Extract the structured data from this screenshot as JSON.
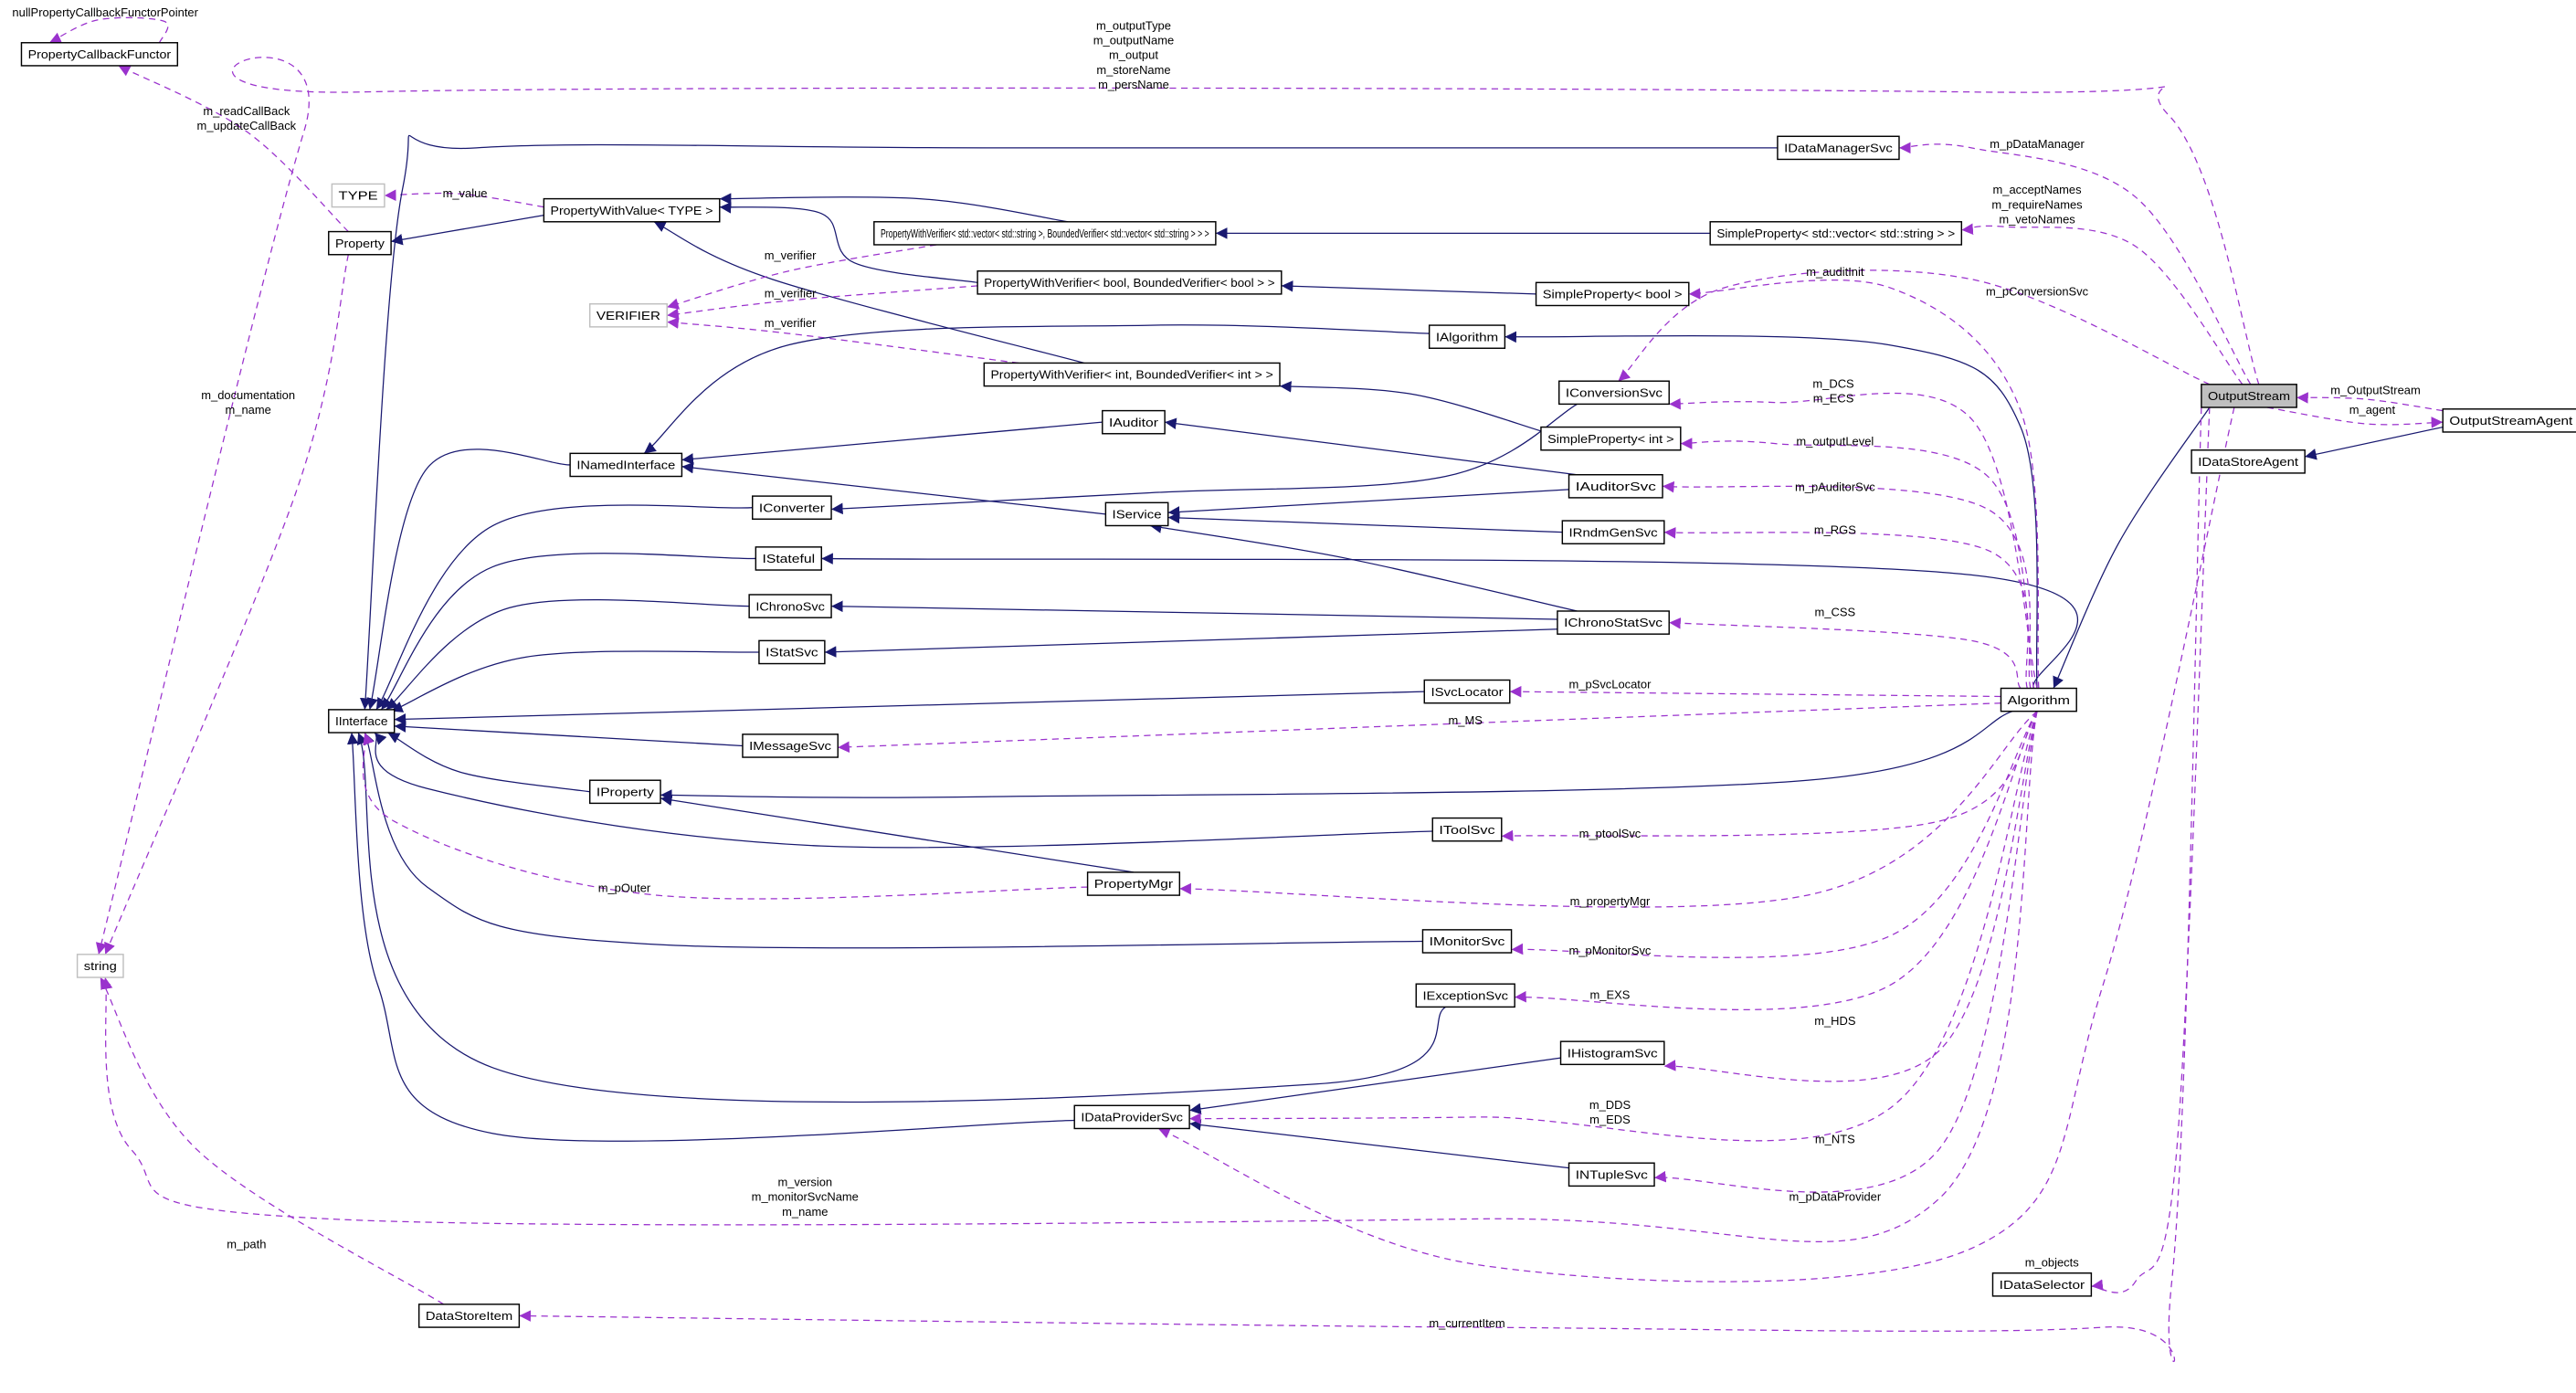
{
  "colors": {
    "inheritance": "#191970",
    "usage": "#9a32cd",
    "focus_fill": "#bfbfbf",
    "undocumented_border": "#bfbfbf"
  },
  "nodes": [
    {
      "id": "PropertyCallbackFunctor",
      "label": "PropertyCallbackFunctor",
      "style": "normal"
    },
    {
      "id": "TYPE",
      "label": "TYPE",
      "style": "gray"
    },
    {
      "id": "Property",
      "label": "Property",
      "style": "normal"
    },
    {
      "id": "PWV",
      "label": "PropertyWithValue< TYPE >",
      "style": "normal"
    },
    {
      "id": "VERIFIER",
      "label": "VERIFIER",
      "style": "gray"
    },
    {
      "id": "PWVvec",
      "label": "PropertyWithVerifier< std::vector< std::string >, BoundedVerifier< std::vector< std::string > > >",
      "style": "normal"
    },
    {
      "id": "IDataManagerSvc",
      "label": "IDataManagerSvc",
      "style": "normal"
    },
    {
      "id": "SPvec",
      "label": "SimpleProperty< std::vector< std::string > >",
      "style": "normal"
    },
    {
      "id": "PWVbool",
      "label": "PropertyWithVerifier< bool, BoundedVerifier< bool > >",
      "style": "normal"
    },
    {
      "id": "SPbool",
      "label": "SimpleProperty< bool >",
      "style": "normal"
    },
    {
      "id": "IAlgorithm",
      "label": "IAlgorithm",
      "style": "normal"
    },
    {
      "id": "PWVint",
      "label": "PropertyWithVerifier< int, BoundedVerifier< int > >",
      "style": "normal"
    },
    {
      "id": "IConversionSvc",
      "label": "IConversionSvc",
      "style": "normal"
    },
    {
      "id": "SPint",
      "label": "SimpleProperty< int >",
      "style": "normal"
    },
    {
      "id": "INamedInterface",
      "label": "INamedInterface",
      "style": "normal"
    },
    {
      "id": "IAuditor",
      "label": "IAuditor",
      "style": "normal"
    },
    {
      "id": "IConverter",
      "label": "IConverter",
      "style": "normal"
    },
    {
      "id": "IService",
      "label": "IService",
      "style": "normal"
    },
    {
      "id": "IAuditorSvc",
      "label": "IAuditorSvc",
      "style": "normal"
    },
    {
      "id": "IRndmGenSvc",
      "label": "IRndmGenSvc",
      "style": "normal"
    },
    {
      "id": "IStateful",
      "label": "IStateful",
      "style": "normal"
    },
    {
      "id": "IChronoSvc",
      "label": "IChronoSvc",
      "style": "normal"
    },
    {
      "id": "IChronoStatSvc",
      "label": "IChronoStatSvc",
      "style": "normal"
    },
    {
      "id": "IStatSvc",
      "label": "IStatSvc",
      "style": "normal"
    },
    {
      "id": "ISvcLocator",
      "label": "ISvcLocator",
      "style": "normal"
    },
    {
      "id": "IInterface",
      "label": "IInterface",
      "style": "normal"
    },
    {
      "id": "Algorithm",
      "label": "Algorithm",
      "style": "normal"
    },
    {
      "id": "IMessageSvc",
      "label": "IMessageSvc",
      "style": "normal"
    },
    {
      "id": "IProperty",
      "label": "IProperty",
      "style": "normal"
    },
    {
      "id": "IToolSvc",
      "label": "IToolSvc",
      "style": "normal"
    },
    {
      "id": "PropertyMgr",
      "label": "PropertyMgr",
      "style": "normal"
    },
    {
      "id": "IMonitorSvc",
      "label": "IMonitorSvc",
      "style": "normal"
    },
    {
      "id": "IExceptionSvc",
      "label": "IExceptionSvc",
      "style": "normal"
    },
    {
      "id": "IHistogramSvc",
      "label": "IHistogramSvc",
      "style": "normal"
    },
    {
      "id": "IDataProviderSvc",
      "label": "IDataProviderSvc",
      "style": "normal"
    },
    {
      "id": "INTupleSvc",
      "label": "INTupleSvc",
      "style": "normal"
    },
    {
      "id": "string",
      "label": "string",
      "style": "gray"
    },
    {
      "id": "DataStoreItem",
      "label": "DataStoreItem",
      "style": "normal"
    },
    {
      "id": "IDataSelector",
      "label": "IDataSelector",
      "style": "normal"
    },
    {
      "id": "OutputStream",
      "label": "OutputStream",
      "style": "highlight"
    },
    {
      "id": "OutputStreamAgent",
      "label": "OutputStreamAgent",
      "style": "normal"
    },
    {
      "id": "IDataStoreAgent",
      "label": "IDataStoreAgent",
      "style": "normal"
    }
  ],
  "edges": [
    {
      "from": "PropertyCallbackFunctor",
      "to": "PropertyCallbackFunctor",
      "kind": "use",
      "label": [
        "nullPropertyCallbackFunctorPointer"
      ]
    },
    {
      "from": "Property",
      "to": "PropertyCallbackFunctor",
      "kind": "use",
      "label": [
        "m_readCallBack",
        "m_updateCallBack"
      ]
    },
    {
      "from": "Property",
      "to": "string",
      "kind": "use",
      "label": [
        "m_documentation",
        "m_name"
      ]
    },
    {
      "from": "PWV",
      "to": "TYPE",
      "kind": "use",
      "label": [
        "m_value"
      ]
    },
    {
      "from": "PWV",
      "to": "Property",
      "kind": "inherit",
      "label": []
    },
    {
      "from": "PWVvec",
      "to": "PWV",
      "kind": "inherit",
      "label": []
    },
    {
      "from": "PWVbool",
      "to": "PWV",
      "kind": "inherit",
      "label": []
    },
    {
      "from": "PWVint",
      "to": "PWV",
      "kind": "inherit",
      "label": []
    },
    {
      "from": "PWVvec",
      "to": "VERIFIER",
      "kind": "use",
      "label": [
        "m_verifier"
      ]
    },
    {
      "from": "PWVbool",
      "to": "VERIFIER",
      "kind": "use",
      "label": [
        "m_verifier"
      ]
    },
    {
      "from": "PWVint",
      "to": "VERIFIER",
      "kind": "use",
      "label": [
        "m_verifier"
      ]
    },
    {
      "from": "SPvec",
      "to": "PWVvec",
      "kind": "inherit",
      "label": []
    },
    {
      "from": "SPbool",
      "to": "PWVbool",
      "kind": "inherit",
      "label": []
    },
    {
      "from": "SPint",
      "to": "PWVint",
      "kind": "inherit",
      "label": []
    },
    {
      "from": "IDataManagerSvc",
      "to": "IInterface",
      "kind": "inherit",
      "label": []
    },
    {
      "from": "INamedInterface",
      "to": "IInterface",
      "kind": "inherit",
      "label": []
    },
    {
      "from": "IAlgorithm",
      "to": "INamedInterface",
      "kind": "inherit",
      "label": []
    },
    {
      "from": "IAuditor",
      "to": "INamedInterface",
      "kind": "inherit",
      "label": []
    },
    {
      "from": "IService",
      "to": "INamedInterface",
      "kind": "inherit",
      "label": []
    },
    {
      "from": "IConverter",
      "to": "IInterface",
      "kind": "inherit",
      "label": []
    },
    {
      "from": "IConversionSvc",
      "to": "IConverter",
      "kind": "inherit",
      "label": []
    },
    {
      "from": "IAuditorSvc",
      "to": "IService",
      "kind": "inherit",
      "label": []
    },
    {
      "from": "IAuditorSvc",
      "to": "IAuditor",
      "kind": "inherit",
      "label": []
    },
    {
      "from": "IRndmGenSvc",
      "to": "IService",
      "kind": "inherit",
      "label": []
    },
    {
      "from": "IChronoStatSvc",
      "to": "IService",
      "kind": "inherit",
      "label": []
    },
    {
      "from": "IChronoStatSvc",
      "to": "IChronoSvc",
      "kind": "inherit",
      "label": []
    },
    {
      "from": "IChronoStatSvc",
      "to": "IStatSvc",
      "kind": "inherit",
      "label": []
    },
    {
      "from": "IStateful",
      "to": "IInterface",
      "kind": "inherit",
      "label": []
    },
    {
      "from": "IChronoSvc",
      "to": "IInterface",
      "kind": "inherit",
      "label": []
    },
    {
      "from": "IStatSvc",
      "to": "IInterface",
      "kind": "inherit",
      "label": []
    },
    {
      "from": "ISvcLocator",
      "to": "IInterface",
      "kind": "inherit",
      "label": []
    },
    {
      "from": "IMessageSvc",
      "to": "IInterface",
      "kind": "inherit",
      "label": []
    },
    {
      "from": "IProperty",
      "to": "IInterface",
      "kind": "inherit",
      "label": []
    },
    {
      "from": "Algorithm",
      "to": "IStateful",
      "kind": "inherit",
      "label": []
    },
    {
      "from": "Algorithm",
      "to": "IAlgorithm",
      "kind": "inherit",
      "label": []
    },
    {
      "from": "Algorithm",
      "to": "IProperty",
      "kind": "inherit",
      "label": []
    },
    {
      "from": "IToolSvc",
      "to": "IInterface",
      "kind": "inherit",
      "label": []
    },
    {
      "from": "PropertyMgr",
      "to": "IProperty",
      "kind": "inherit",
      "label": []
    },
    {
      "from": "IMonitorSvc",
      "to": "IInterface",
      "kind": "inherit",
      "label": []
    },
    {
      "from": "IExceptionSvc",
      "to": "IInterface",
      "kind": "inherit",
      "label": []
    },
    {
      "from": "IDataProviderSvc",
      "to": "IInterface",
      "kind": "inherit",
      "label": []
    },
    {
      "from": "IHistogramSvc",
      "to": "IDataProviderSvc",
      "kind": "inherit",
      "label": []
    },
    {
      "from": "INTupleSvc",
      "to": "IDataProviderSvc",
      "kind": "inherit",
      "label": []
    },
    {
      "from": "OutputStream",
      "to": "Algorithm",
      "kind": "inherit",
      "label": []
    },
    {
      "from": "OutputStreamAgent",
      "to": "IDataStoreAgent",
      "kind": "inherit",
      "label": []
    },
    {
      "from": "Algorithm",
      "to": "SPbool",
      "kind": "use",
      "label": [
        "m_auditInit"
      ]
    },
    {
      "from": "Algorithm",
      "to": "IConversionSvc",
      "kind": "use",
      "label": [
        "m_DCS",
        "m_ECS"
      ]
    },
    {
      "from": "Algorithm",
      "to": "SPint",
      "kind": "use",
      "label": [
        "m_outputLevel"
      ]
    },
    {
      "from": "Algorithm",
      "to": "IAuditorSvc",
      "kind": "use",
      "label": [
        "m_pAuditorSvc"
      ]
    },
    {
      "from": "Algorithm",
      "to": "IRndmGenSvc",
      "kind": "use",
      "label": [
        "m_RGS"
      ]
    },
    {
      "from": "Algorithm",
      "to": "IChronoStatSvc",
      "kind": "use",
      "label": [
        "m_CSS"
      ]
    },
    {
      "from": "Algorithm",
      "to": "ISvcLocator",
      "kind": "use",
      "label": [
        "m_pSvcLocator"
      ]
    },
    {
      "from": "Algorithm",
      "to": "IMessageSvc",
      "kind": "use",
      "label": [
        "m_MS"
      ]
    },
    {
      "from": "Algorithm",
      "to": "IToolSvc",
      "kind": "use",
      "label": [
        "m_ptoolSvc"
      ]
    },
    {
      "from": "Algorithm",
      "to": "PropertyMgr",
      "kind": "use",
      "label": [
        "m_propertyMgr"
      ]
    },
    {
      "from": "PropertyMgr",
      "to": "IInterface",
      "kind": "use",
      "label": [
        "m_pOuter"
      ]
    },
    {
      "from": "Algorithm",
      "to": "IMonitorSvc",
      "kind": "use",
      "label": [
        "m_pMonitorSvc"
      ]
    },
    {
      "from": "Algorithm",
      "to": "IExceptionSvc",
      "kind": "use",
      "label": [
        "m_EXS"
      ]
    },
    {
      "from": "Algorithm",
      "to": "IHistogramSvc",
      "kind": "use",
      "label": [
        "m_HDS"
      ]
    },
    {
      "from": "Algorithm",
      "to": "IDataProviderSvc",
      "kind": "use",
      "label": [
        "m_DDS",
        "m_EDS"
      ]
    },
    {
      "from": "Algorithm",
      "to": "INTupleSvc",
      "kind": "use",
      "label": [
        "m_NTS"
      ]
    },
    {
      "from": "Algorithm",
      "to": "string",
      "kind": "use",
      "label": [
        "m_version",
        "m_monitorSvcName",
        "m_name"
      ]
    },
    {
      "from": "OutputStream",
      "to": "string",
      "kind": "use",
      "label": [
        "m_outputType",
        "m_outputName",
        "m_output",
        "m_storeName",
        "m_persName"
      ]
    },
    {
      "from": "OutputStream",
      "to": "IDataManagerSvc",
      "kind": "use",
      "label": [
        "m_pDataManager"
      ]
    },
    {
      "from": "OutputStream",
      "to": "SPvec",
      "kind": "use",
      "label": [
        "m_acceptNames",
        "m_requireNames",
        "m_vetoNames"
      ]
    },
    {
      "from": "OutputStream",
      "to": "IConversionSvc",
      "kind": "use",
      "label": [
        "m_pConversionSvc"
      ]
    },
    {
      "from": "OutputStream",
      "to": "IDataProviderSvc",
      "kind": "use",
      "label": [
        "m_pDataProvider"
      ]
    },
    {
      "from": "OutputStream",
      "to": "IDataSelector",
      "kind": "use",
      "label": [
        "m_objects"
      ]
    },
    {
      "from": "OutputStream",
      "to": "DataStoreItem",
      "kind": "use",
      "label": [
        "m_currentItem"
      ]
    },
    {
      "from": "DataStoreItem",
      "to": "string",
      "kind": "use",
      "label": [
        "m_path"
      ]
    },
    {
      "from": "OutputStreamAgent",
      "to": "OutputStream",
      "kind": "use",
      "label": [
        "m_OutputStream"
      ]
    },
    {
      "from": "OutputStream",
      "to": "OutputStreamAgent",
      "kind": "use",
      "label": [
        "m_agent"
      ]
    }
  ]
}
